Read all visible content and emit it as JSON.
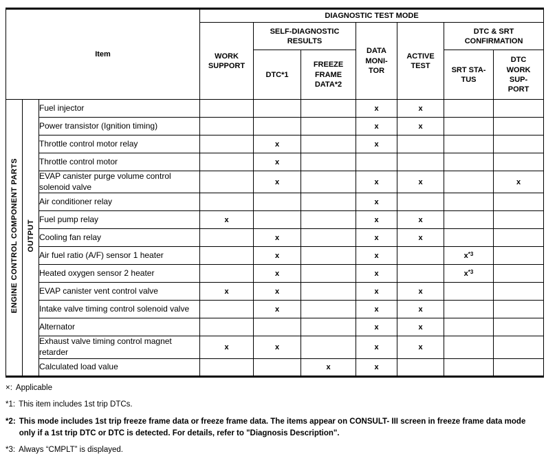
{
  "colors": {
    "background": "#ffffff",
    "text": "#000000",
    "border": "#000000"
  },
  "table": {
    "header": {
      "item": "Item",
      "diagnostic_test_mode": "DIAGNOSTIC TEST MODE",
      "work_support": "WORK\nSUPPORT",
      "self_diagnostic_results": "SELF-DIAGNOSTIC\nRESULTS",
      "dtc": "DTC*1",
      "freeze_frame_data": "FREEZE\nFRAME\nDATA*2",
      "data_monitor": "DATA\nMONI-\nTOR",
      "active_test": "ACTIVE\nTEST",
      "dtc_srt_confirmation": "DTC & SRT\nCONFIRMATION",
      "srt_status": "SRT STA-\nTUS",
      "dtc_work_support": "DTC\nWORK\nSUP-\nPORT"
    },
    "row_groups": {
      "outer": "ENGINE CONTROL COMPONENT PARTS",
      "inner": "OUTPUT"
    },
    "mark_symbol": "x",
    "column_keys": [
      "work_support",
      "dtc",
      "freeze_frame_data",
      "data_monitor",
      "active_test",
      "srt_status",
      "dtc_work_support"
    ],
    "rows": [
      {
        "item": "Fuel injector",
        "marks": [
          "",
          "",
          "",
          "x",
          "x",
          "",
          ""
        ]
      },
      {
        "item": "Power transistor (Ignition timing)",
        "marks": [
          "",
          "",
          "",
          "x",
          "x",
          "",
          ""
        ]
      },
      {
        "item": "Throttle control motor relay",
        "marks": [
          "",
          "x",
          "",
          "x",
          "",
          "",
          ""
        ]
      },
      {
        "item": "Throttle control motor",
        "marks": [
          "",
          "x",
          "",
          "",
          "",
          "",
          ""
        ]
      },
      {
        "item": "EVAP canister purge volume control solenoid valve",
        "marks": [
          "",
          "x",
          "",
          "x",
          "x",
          "",
          "x"
        ]
      },
      {
        "item": "Air conditioner relay",
        "marks": [
          "",
          "",
          "",
          "x",
          "",
          "",
          ""
        ]
      },
      {
        "item": "Fuel pump relay",
        "marks": [
          "x",
          "",
          "",
          "x",
          "x",
          "",
          ""
        ]
      },
      {
        "item": "Cooling fan relay",
        "marks": [
          "",
          "x",
          "",
          "x",
          "x",
          "",
          ""
        ]
      },
      {
        "item": "Air fuel ratio (A/F) sensor 1 heater",
        "marks": [
          "",
          "x",
          "",
          "x",
          "",
          "x*3",
          ""
        ]
      },
      {
        "item": "Heated oxygen sensor 2 heater",
        "marks": [
          "",
          "x",
          "",
          "x",
          "",
          "x*3",
          ""
        ]
      },
      {
        "item": "EVAP canister vent control valve",
        "marks": [
          "x",
          "x",
          "",
          "x",
          "x",
          "",
          ""
        ]
      },
      {
        "item": "Intake valve timing control solenoid valve",
        "marks": [
          "",
          "x",
          "",
          "x",
          "x",
          "",
          ""
        ]
      },
      {
        "item": "Alternator",
        "marks": [
          "",
          "",
          "",
          "x",
          "x",
          "",
          ""
        ]
      },
      {
        "item": "Exhaust valve timing control magnet retarder",
        "marks": [
          "x",
          "x",
          "",
          "x",
          "x",
          "",
          ""
        ]
      },
      {
        "item": "Calculated load value",
        "marks": [
          "",
          "",
          "x",
          "x",
          "",
          "",
          ""
        ]
      }
    ]
  },
  "footnotes": [
    {
      "symbol": "×:",
      "text": "Applicable"
    },
    {
      "symbol": "*1:",
      "text": "This item includes 1st trip DTCs."
    },
    {
      "symbol": "*2:",
      "text": "This mode includes 1st trip freeze frame data or freeze frame data. The items appear on CONSULT- III screen in freeze frame data mode only if a 1st trip DTC or DTC is detected. For details, refer to \"Diagnosis Description\"."
    },
    {
      "symbol": "*3:",
      "text": "Always “CMPLT” is displayed."
    }
  ]
}
